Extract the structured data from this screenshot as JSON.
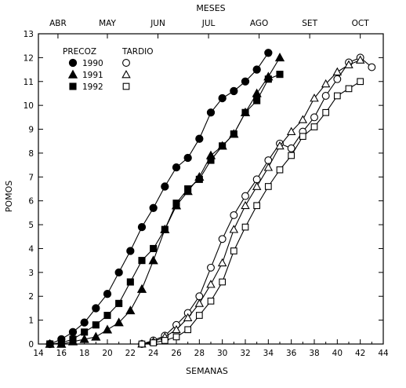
{
  "chart_data": {
    "type": "line",
    "xlabel": "SEMANAS",
    "ylabel": "POMOS",
    "top_axis_label": "MESES",
    "xlim": [
      14,
      44
    ],
    "ylim": [
      0,
      13
    ],
    "x_ticks": [
      14,
      16,
      18,
      20,
      22,
      24,
      26,
      28,
      30,
      32,
      34,
      36,
      38,
      40,
      42,
      44
    ],
    "y_ticks": [
      0,
      1,
      2,
      3,
      4,
      5,
      6,
      7,
      8,
      9,
      10,
      11,
      12,
      13
    ],
    "month_ticks": [
      {
        "label": "ABR",
        "x": 15.7
      },
      {
        "label": "MAY",
        "x": 20
      },
      {
        "label": "JUN",
        "x": 24.4
      },
      {
        "label": "JUL",
        "x": 28.8
      },
      {
        "label": "AGO",
        "x": 33.2
      },
      {
        "label": "SET",
        "x": 37.6
      },
      {
        "label": "OCT",
        "x": 42
      }
    ],
    "grid": false,
    "legend": {
      "placement": "top-left",
      "group_precoz": "PRECOZ",
      "group_tardio": "TARDIO",
      "years": [
        "1990",
        "1991",
        "1992"
      ]
    },
    "series": [
      {
        "name": "1990",
        "group": "PRECOZ",
        "marker": "circle",
        "filled": true,
        "x": [
          15,
          16,
          17,
          18,
          19,
          20,
          21,
          22,
          23,
          24,
          25,
          26,
          27,
          28,
          29,
          30,
          31,
          32,
          33,
          34
        ],
        "y": [
          0,
          0.2,
          0.5,
          0.9,
          1.5,
          2.1,
          3.0,
          3.9,
          4.9,
          5.7,
          6.6,
          7.4,
          7.8,
          8.6,
          9.7,
          10.3,
          10.6,
          11.0,
          11.5,
          12.2
        ]
      },
      {
        "name": "1991",
        "group": "PRECOZ",
        "marker": "triangle",
        "filled": true,
        "x": [
          15,
          16,
          17,
          18,
          19,
          20,
          21,
          22,
          23,
          24,
          25,
          26,
          27,
          28,
          29,
          30,
          31,
          32,
          33,
          34,
          35
        ],
        "y": [
          0,
          0,
          0.1,
          0.2,
          0.3,
          0.6,
          0.9,
          1.4,
          2.3,
          3.5,
          4.8,
          5.8,
          6.4,
          7.0,
          7.9,
          8.3,
          8.8,
          9.7,
          10.5,
          11.2,
          12.0
        ]
      },
      {
        "name": "1992",
        "group": "PRECOZ",
        "marker": "square",
        "filled": true,
        "x": [
          15,
          16,
          17,
          18,
          19,
          20,
          21,
          22,
          23,
          24,
          25,
          26,
          27,
          28,
          29,
          30,
          31,
          32,
          33,
          34,
          35
        ],
        "y": [
          0,
          0.05,
          0.2,
          0.5,
          0.8,
          1.2,
          1.7,
          2.6,
          3.5,
          4.0,
          4.8,
          5.9,
          6.5,
          6.9,
          7.7,
          8.3,
          8.8,
          9.7,
          10.2,
          11.1,
          11.3
        ]
      },
      {
        "name": "1990",
        "group": "TARDIO",
        "marker": "circle",
        "filled": false,
        "x": [
          23,
          24,
          25,
          26,
          27,
          28,
          29,
          30,
          31,
          32,
          33,
          34,
          35,
          36,
          37,
          38,
          39,
          40,
          41,
          42,
          43
        ],
        "y": [
          0,
          0.15,
          0.35,
          0.8,
          1.3,
          2.0,
          3.2,
          4.4,
          5.4,
          6.2,
          6.9,
          7.7,
          8.4,
          8.2,
          8.9,
          9.5,
          10.4,
          11.1,
          11.8,
          12.0,
          11.6
        ]
      },
      {
        "name": "1991",
        "group": "TARDIO",
        "marker": "triangle",
        "filled": false,
        "x": [
          23,
          24,
          25,
          26,
          27,
          28,
          29,
          30,
          31,
          32,
          33,
          34,
          35,
          36,
          37,
          38,
          39,
          40,
          41,
          42
        ],
        "y": [
          0,
          0.1,
          0.3,
          0.6,
          1.1,
          1.7,
          2.5,
          3.4,
          4.8,
          5.8,
          6.6,
          7.4,
          8.3,
          8.9,
          9.4,
          10.3,
          10.9,
          11.4,
          11.7,
          11.9
        ]
      },
      {
        "name": "1992",
        "group": "TARDIO",
        "marker": "square",
        "filled": false,
        "x": [
          23,
          24,
          25,
          26,
          27,
          28,
          29,
          30,
          31,
          32,
          33,
          34,
          35,
          36,
          37,
          38,
          39,
          40,
          41,
          42
        ],
        "y": [
          0,
          0.05,
          0.15,
          0.3,
          0.6,
          1.2,
          1.8,
          2.6,
          3.9,
          4.9,
          5.8,
          6.6,
          7.3,
          7.9,
          8.7,
          9.1,
          9.7,
          10.4,
          10.7,
          11.0
        ]
      }
    ]
  }
}
